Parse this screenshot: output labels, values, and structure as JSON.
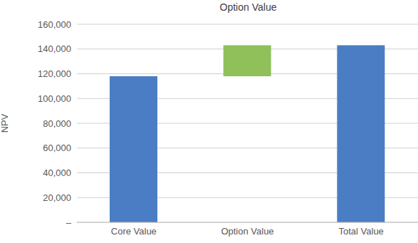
{
  "chart_data": {
    "type": "waterfall",
    "title": "Option Value",
    "y_label": "NPV",
    "categories": [
      "Core Value",
      "Option Value",
      "Total Value"
    ],
    "values": [
      118000,
      25000,
      143000
    ],
    "colors": [
      "#4a7dc4",
      "#8fc05a",
      "#4a7dc4"
    ],
    "ylim": [
      0,
      160000
    ],
    "yticks": [
      {
        "value": 0,
        "label": "–"
      },
      {
        "value": 20000,
        "label": "20,000"
      },
      {
        "value": 40000,
        "label": "40,000"
      },
      {
        "value": 60000,
        "label": "60,000"
      },
      {
        "value": 80000,
        "label": "80,000"
      },
      {
        "value": 100000,
        "label": "100,000"
      },
      {
        "value": 120000,
        "label": "120,000"
      },
      {
        "value": 140000,
        "label": "140,000"
      },
      {
        "value": 160000,
        "label": "160,000"
      }
    ],
    "grid": true
  }
}
